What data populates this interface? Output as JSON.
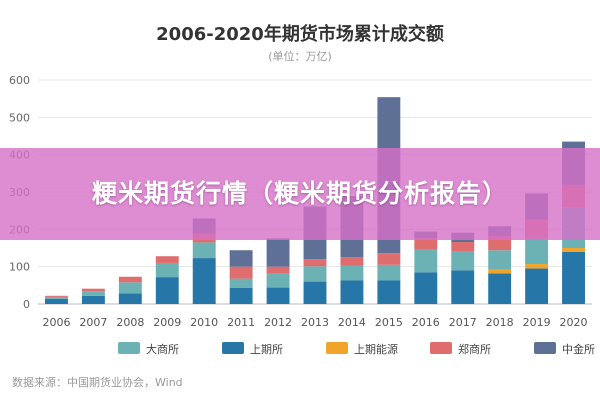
{
  "banner": {
    "headline": "粳米期货行情（粳米期货分析报告）"
  },
  "source": "数据来源：中国期货业协会，Wind",
  "chart_data": {
    "type": "bar",
    "stacked": true,
    "title": "2006-2020年期货市场累计成交额",
    "subtitle": "(单位：万亿)",
    "xlabel": "",
    "ylabel": "",
    "ylim": [
      0,
      600
    ],
    "yticks": [
      0,
      100,
      200,
      300,
      400,
      500,
      600
    ],
    "grid": true,
    "legend_position": "bottom",
    "categories": [
      "2006",
      "2007",
      "2008",
      "2009",
      "2010",
      "2011",
      "2012",
      "2013",
      "2014",
      "2015",
      "2016",
      "2017",
      "2018",
      "2019",
      "2020"
    ],
    "series": [
      {
        "name": "上期所",
        "color": "#2776a8",
        "values": [
          14,
          22,
          28,
          72,
          123,
          43,
          44,
          60,
          63,
          63,
          85,
          90,
          82,
          95,
          140
        ]
      },
      {
        "name": "上期能源",
        "color": "#f0a52a",
        "values": [
          0,
          0,
          0,
          0,
          0,
          0,
          0,
          0,
          0,
          0,
          0,
          0,
          10,
          12,
          10
        ]
      },
      {
        "name": "大商所",
        "color": "#6cb1b3",
        "values": [
          5,
          12,
          30,
          38,
          42,
          25,
          39,
          41,
          39,
          42,
          60,
          52,
          52,
          69,
          109
        ]
      },
      {
        "name": "郑商所",
        "color": "#e06d6d",
        "values": [
          3,
          7,
          15,
          18,
          23,
          32,
          17,
          19,
          23,
          31,
          31,
          24,
          38,
          50,
          60
        ]
      },
      {
        "name": "中金所",
        "color": "#5e7096",
        "values": [
          0,
          0,
          0,
          0,
          41,
          44,
          76,
          141,
          164,
          418,
          18,
          25,
          26,
          70,
          116
        ]
      }
    ],
    "legend_order": [
      "大商所",
      "上期所",
      "上期能源",
      "郑商所",
      "中金所"
    ]
  }
}
